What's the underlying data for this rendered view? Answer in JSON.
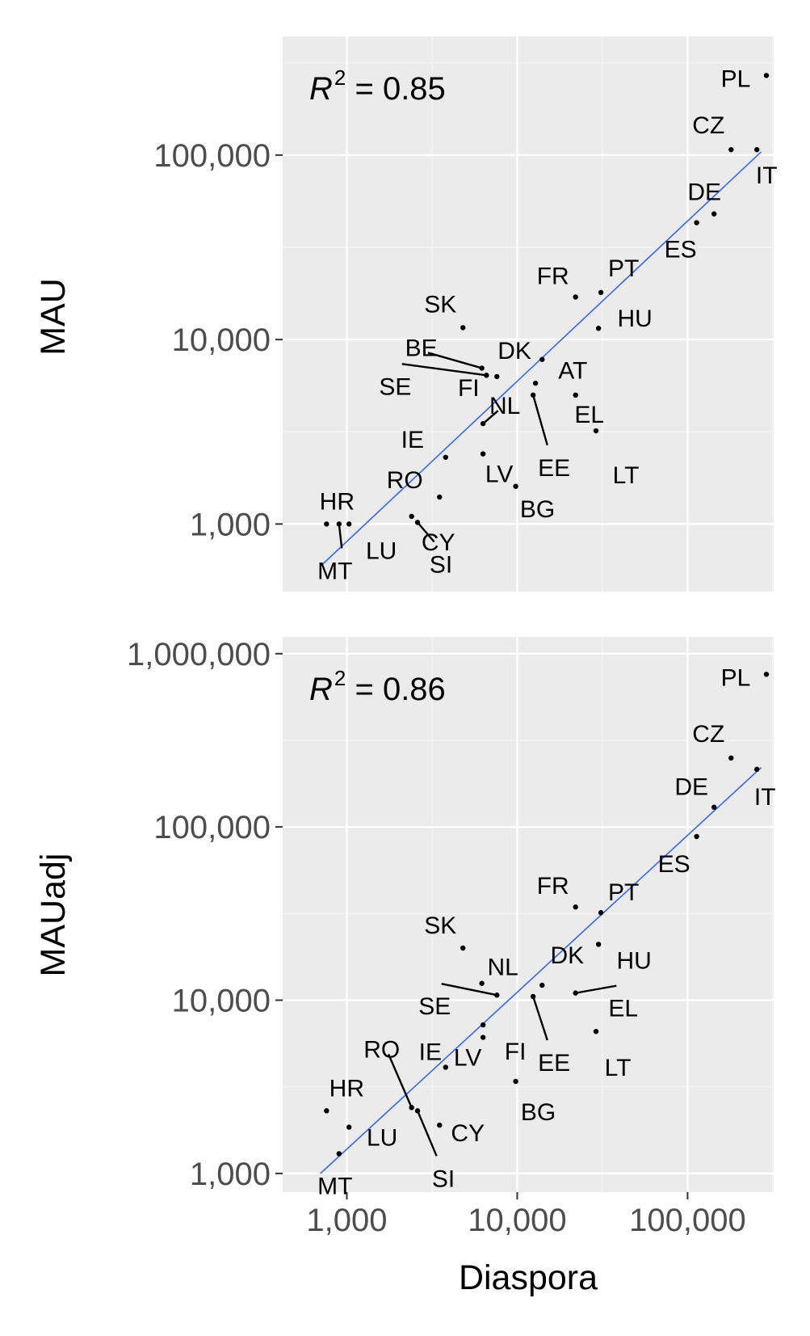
{
  "chart_data": [
    {
      "type": "scatter",
      "xlabel": "Diaspora",
      "ylabel": "MAU",
      "x_scale": "log10",
      "y_scale": "log10",
      "xlim": [
        420,
        320000
      ],
      "ylim": [
        430,
        440000
      ],
      "x_ticks": [
        {
          "v": 1000,
          "label": "1,000"
        },
        {
          "v": 10000,
          "label": "10,000"
        },
        {
          "v": 100000,
          "label": "100,000"
        }
      ],
      "y_ticks": [
        {
          "v": 1000,
          "label": "1,000"
        },
        {
          "v": 10000,
          "label": "10,000"
        },
        {
          "v": 100000,
          "label": "100,000"
        }
      ],
      "annotation": {
        "r": "R",
        "sup": "2",
        "rest": " = 0.85"
      },
      "fit_line": {
        "x": [
          700,
          270000
        ],
        "y": [
          590,
          104000
        ]
      },
      "grid": true,
      "points": [
        {
          "label": "PL",
          "x": 290000,
          "y": 270000
        },
        {
          "label": "CZ",
          "x": 180000,
          "y": 107000
        },
        {
          "label": "IT",
          "x": 255000,
          "y": 107000
        },
        {
          "label": "DE",
          "x": 143000,
          "y": 48000
        },
        {
          "label": "ES",
          "x": 113000,
          "y": 43000
        },
        {
          "label": "PT",
          "x": 31000,
          "y": 18000
        },
        {
          "label": "FR",
          "x": 22000,
          "y": 17000
        },
        {
          "label": "HU",
          "x": 30000,
          "y": 11500
        },
        {
          "label": "SK",
          "x": 4800,
          "y": 11600
        },
        {
          "label": "AT",
          "x": 14000,
          "y": 7800
        },
        {
          "label": "BE",
          "x": 6200,
          "y": 7000
        },
        {
          "label": "SE",
          "x": 6600,
          "y": 6400
        },
        {
          "label": "FI",
          "x": 7600,
          "y": 6300
        },
        {
          "label": "DK",
          "x": 12800,
          "y": 5800
        },
        {
          "label": "EE",
          "x": 12400,
          "y": 5000
        },
        {
          "label": "EL",
          "x": 22000,
          "y": 5000
        },
        {
          "label": "NL",
          "x": 6300,
          "y": 3500
        },
        {
          "label": "LT",
          "x": 29000,
          "y": 3200
        },
        {
          "label": "LV",
          "x": 6300,
          "y": 2400
        },
        {
          "label": "IE",
          "x": 3800,
          "y": 2300
        },
        {
          "label": "BG",
          "x": 9800,
          "y": 1600
        },
        {
          "label": "RO",
          "x": 3500,
          "y": 1400
        },
        {
          "label": "CY",
          "x": 2400,
          "y": 1100
        },
        {
          "label": "SI",
          "x": 2600,
          "y": 1020
        },
        {
          "label": "HR",
          "x": 760,
          "y": 1000
        },
        {
          "label": "MT",
          "x": 900,
          "y": 1000
        },
        {
          "label": "LU",
          "x": 1030,
          "y": 1000
        }
      ]
    },
    {
      "type": "scatter",
      "xlabel": "Diaspora",
      "ylabel": "MAUadj",
      "x_scale": "log10",
      "y_scale": "log10",
      "xlim": [
        420,
        320000
      ],
      "ylim": [
        780,
        1250000
      ],
      "x_ticks": [
        {
          "v": 1000,
          "label": "1,000"
        },
        {
          "v": 10000,
          "label": "10,000"
        },
        {
          "v": 100000,
          "label": "100,000"
        }
      ],
      "y_ticks": [
        {
          "v": 1000,
          "label": "1,000"
        },
        {
          "v": 10000,
          "label": "10,000"
        },
        {
          "v": 100000,
          "label": "100,000"
        },
        {
          "v": 1000000,
          "label": "1,000,000"
        }
      ],
      "annotation": {
        "r": "R",
        "sup": "2",
        "rest": " = 0.86"
      },
      "fit_line": {
        "x": [
          700,
          270000
        ],
        "y": [
          1000,
          220000
        ]
      },
      "grid": true,
      "points": [
        {
          "label": "PL",
          "x": 290000,
          "y": 760000
        },
        {
          "label": "CZ",
          "x": 180000,
          "y": 250000
        },
        {
          "label": "IT",
          "x": 255000,
          "y": 215000
        },
        {
          "label": "DE",
          "x": 143000,
          "y": 130000
        },
        {
          "label": "ES",
          "x": 113000,
          "y": 88000
        },
        {
          "label": "PT",
          "x": 31000,
          "y": 32000
        },
        {
          "label": "FR",
          "x": 22000,
          "y": 34500
        },
        {
          "label": "HU",
          "x": 30000,
          "y": 21000
        },
        {
          "label": "SK",
          "x": 4800,
          "y": 20000
        },
        {
          "label": "NL",
          "x": 6200,
          "y": 12500
        },
        {
          "label": "DK",
          "x": 14000,
          "y": 12200
        },
        {
          "label": "EL",
          "x": 22000,
          "y": 11000
        },
        {
          "label": "SE",
          "x": 7600,
          "y": 10700
        },
        {
          "label": "EE",
          "x": 12400,
          "y": 10500
        },
        {
          "label": "FI",
          "x": 6300,
          "y": 7200
        },
        {
          "label": "LT",
          "x": 29000,
          "y": 6600
        },
        {
          "label": "LV",
          "x": 6300,
          "y": 6100
        },
        {
          "label": "IE",
          "x": 3800,
          "y": 4100
        },
        {
          "label": "BG",
          "x": 9800,
          "y": 3400
        },
        {
          "label": "HR",
          "x": 760,
          "y": 2300
        },
        {
          "label": "RO",
          "x": 2400,
          "y": 2400
        },
        {
          "label": "SI",
          "x": 2600,
          "y": 2300
        },
        {
          "label": "CY",
          "x": 3500,
          "y": 1900
        },
        {
          "label": "LU",
          "x": 1030,
          "y": 1850
        },
        {
          "label": "MT",
          "x": 900,
          "y": 1300
        }
      ]
    }
  ]
}
